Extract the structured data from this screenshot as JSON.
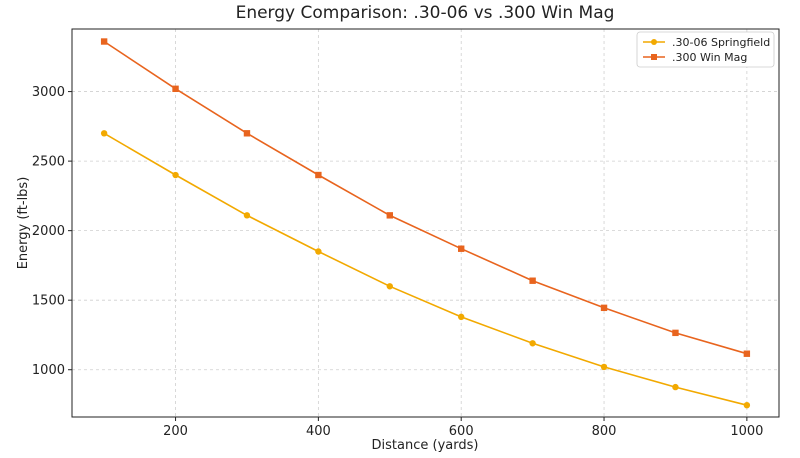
{
  "chart_data": {
    "type": "line",
    "title": "Energy Comparison: .30-06 vs .300 Win Mag",
    "xlabel": "Distance (yards)",
    "ylabel": "Energy (ft-lbs)",
    "x": [
      100,
      200,
      300,
      400,
      500,
      600,
      700,
      800,
      900,
      1000
    ],
    "xlim": [
      55,
      1045
    ],
    "ylim": [
      660,
      3450
    ],
    "xticks": [
      200,
      400,
      600,
      800,
      1000
    ],
    "yticks": [
      1000,
      1500,
      2000,
      2500,
      3000
    ],
    "grid": true,
    "legend_position": "top-right",
    "series": [
      {
        "name": ".30-06 Springfield",
        "color": "#f2a900",
        "marker": "circle",
        "values": [
          2700,
          2400,
          2110,
          1850,
          1600,
          1380,
          1190,
          1020,
          875,
          745
        ]
      },
      {
        "name": ".300 Win Mag",
        "color": "#e8641e",
        "marker": "square",
        "values": [
          3360,
          3020,
          2700,
          2400,
          2110,
          1870,
          1640,
          1445,
          1265,
          1115
        ]
      }
    ]
  }
}
